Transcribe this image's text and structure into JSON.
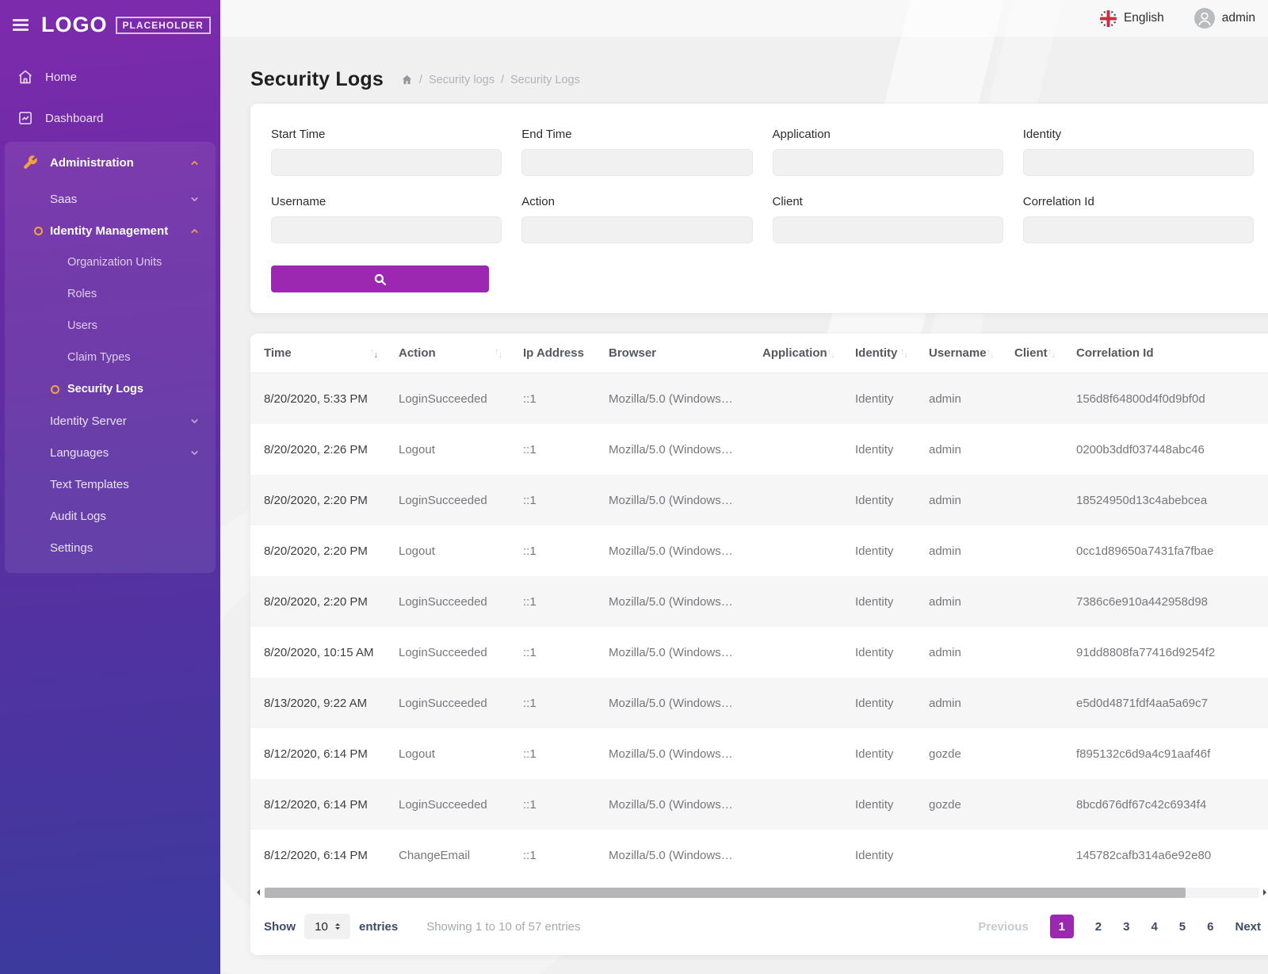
{
  "app": {
    "logo_text": "LOGO",
    "logo_badge": "PLACEHOLDER"
  },
  "topbar": {
    "language": "English",
    "username": "admin"
  },
  "sidebar": {
    "top": [
      {
        "label": "Home",
        "icon": "home"
      },
      {
        "label": "Dashboard",
        "icon": "chart"
      }
    ],
    "group": {
      "header": {
        "label": "Administration",
        "icon": "wrench",
        "chevron": "up",
        "accent": true
      },
      "items": [
        {
          "label": "Saas",
          "level": 1,
          "chevron": "down"
        },
        {
          "label": "Identity Management",
          "level": 1,
          "chevron": "up",
          "bullet": true,
          "active": true,
          "accent": true
        },
        {
          "label": "Organization Units",
          "level": 2
        },
        {
          "label": "Roles",
          "level": 2
        },
        {
          "label": "Users",
          "level": 2
        },
        {
          "label": "Claim Types",
          "level": 2
        },
        {
          "label": "Security Logs",
          "level": 2,
          "bullet": true,
          "active": true
        },
        {
          "label": "Identity Server",
          "level": 1,
          "chevron": "down"
        },
        {
          "label": "Languages",
          "level": 1,
          "chevron": "down"
        },
        {
          "label": "Text Templates",
          "level": 1
        },
        {
          "label": "Audit Logs",
          "level": 1
        },
        {
          "label": "Settings",
          "level": 1
        }
      ]
    }
  },
  "page": {
    "title": "Security Logs",
    "sep": "/",
    "breadcrumbs": [
      "Security logs",
      "Security Logs"
    ]
  },
  "filters": {
    "fields": [
      {
        "label": "Start Time",
        "value": ""
      },
      {
        "label": "End Time",
        "value": ""
      },
      {
        "label": "Application",
        "value": ""
      },
      {
        "label": "Identity",
        "value": ""
      },
      {
        "label": "Username",
        "value": ""
      },
      {
        "label": "Action",
        "value": ""
      },
      {
        "label": "Client",
        "value": ""
      },
      {
        "label": "Correlation Id",
        "value": ""
      }
    ]
  },
  "table": {
    "columns": [
      {
        "label": "Time",
        "sortable": true,
        "sort": "desc"
      },
      {
        "label": "Action",
        "sortable": true
      },
      {
        "label": "Ip Address"
      },
      {
        "label": "Browser"
      },
      {
        "label": "Application",
        "sortable": true
      },
      {
        "label": "Identity",
        "sortable": true
      },
      {
        "label": "Username",
        "sortable": true
      },
      {
        "label": "Client",
        "sortable": true
      },
      {
        "label": "Correlation Id"
      }
    ],
    "rows": [
      [
        "8/20/2020, 5:33 PM",
        "LoginSucceeded",
        "::1",
        "Mozilla/5.0 (Windows…",
        "",
        "Identity",
        "admin",
        "",
        "156d8f64800d4f0d9bf0d"
      ],
      [
        "8/20/2020, 2:26 PM",
        "Logout",
        "::1",
        "Mozilla/5.0 (Windows…",
        "",
        "Identity",
        "admin",
        "",
        "0200b3ddf037448abc46"
      ],
      [
        "8/20/2020, 2:20 PM",
        "LoginSucceeded",
        "::1",
        "Mozilla/5.0 (Windows…",
        "",
        "Identity",
        "admin",
        "",
        "18524950d13c4abebcea"
      ],
      [
        "8/20/2020, 2:20 PM",
        "Logout",
        "::1",
        "Mozilla/5.0 (Windows…",
        "",
        "Identity",
        "admin",
        "",
        "0cc1d89650a7431fa7fbae"
      ],
      [
        "8/20/2020, 2:20 PM",
        "LoginSucceeded",
        "::1",
        "Mozilla/5.0 (Windows…",
        "",
        "Identity",
        "admin",
        "",
        "7386c6e910a442958d98"
      ],
      [
        "8/20/2020, 10:15 AM",
        "LoginSucceeded",
        "::1",
        "Mozilla/5.0 (Windows…",
        "",
        "Identity",
        "admin",
        "",
        "91dd8808fa77416d9254f2"
      ],
      [
        "8/13/2020, 9:22 AM",
        "LoginSucceeded",
        "::1",
        "Mozilla/5.0 (Windows…",
        "",
        "Identity",
        "admin",
        "",
        "e5d0d4871fdf4aa5a69c7"
      ],
      [
        "8/12/2020, 6:14 PM",
        "Logout",
        "::1",
        "Mozilla/5.0 (Windows…",
        "",
        "Identity",
        "gozde",
        "",
        "f895132c6d9a4c91aaf46f"
      ],
      [
        "8/12/2020, 6:14 PM",
        "LoginSucceeded",
        "::1",
        "Mozilla/5.0 (Windows…",
        "",
        "Identity",
        "gozde",
        "",
        "8bcd676df67c42c6934f4"
      ],
      [
        "8/12/2020, 6:14 PM",
        "ChangeEmail",
        "::1",
        "Mozilla/5.0 (Windows…",
        "",
        "Identity",
        "",
        "",
        "145782cafb314a6e92e80"
      ]
    ]
  },
  "footer": {
    "show_label": "Show",
    "page_size": "10",
    "entries_label": "entries",
    "summary": "Showing 1 to 10 of 57 entries",
    "previous": "Previous",
    "pages": [
      "1",
      "2",
      "3",
      "4",
      "5",
      "6"
    ],
    "active_page": "1",
    "next": "Next"
  },
  "colors": {
    "accent_purple": "#9c27b0",
    "accent_orange": "#f2a33c",
    "sidebar_top": "#7d2bad",
    "sidebar_bottom": "#3b3a9d"
  }
}
